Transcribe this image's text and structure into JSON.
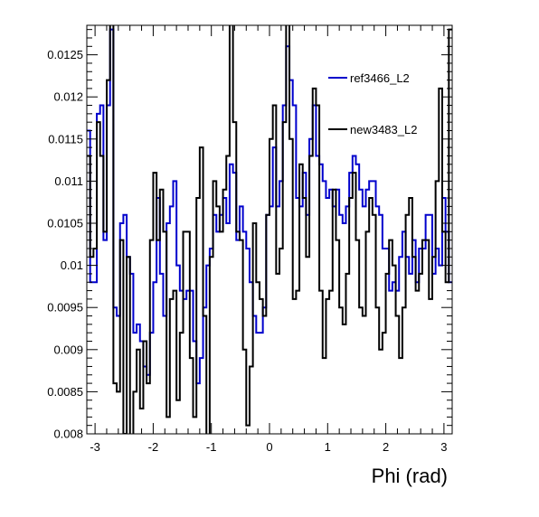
{
  "chart_data": {
    "type": "line",
    "xlabel": "Phi (rad)",
    "ylabel": "",
    "xlim": [
      -3.1416,
      3.1416
    ],
    "ylim": [
      0.008,
      0.01285
    ],
    "grid": false,
    "legend_placement": "top-right",
    "x_ticks": [
      -3,
      -2,
      -1,
      0,
      1,
      2,
      3
    ],
    "x_tick_labels": [
      "-3",
      "-2",
      "-1",
      "0",
      "1",
      "2",
      "3"
    ],
    "y_ticks": [
      0.008,
      0.0085,
      0.009,
      0.0095,
      0.01,
      0.0105,
      0.011,
      0.0115,
      0.012,
      0.0125
    ],
    "y_tick_labels": [
      "0.008",
      "0.0085",
      "0.009",
      "0.0095",
      "0.01",
      "0.0105",
      "0.011",
      "0.0115",
      "0.012",
      "0.0125"
    ],
    "series": [
      {
        "name": "ref3466_L2",
        "color": "#0000cc",
        "values": [
          0.0116,
          0.0098,
          0.0098,
          0.0118,
          0.0119,
          0.0103,
          0.0119,
          0.0128,
          0.0095,
          0.0094,
          0.0105,
          0.0106,
          0.0101,
          0.0099,
          0.0092,
          0.0093,
          0.0091,
          0.0088,
          0.0087,
          0.0092,
          0.0098,
          0.0108,
          0.0099,
          0.0094,
          0.0105,
          0.0107,
          0.011,
          0.01,
          0.0097,
          0.0096,
          0.0097,
          0.0097,
          0.0091,
          0.0086,
          0.0089,
          0.0095,
          0.01,
          0.0102,
          0.0106,
          0.0104,
          0.0106,
          0.0108,
          0.0105,
          0.0112,
          0.0111,
          0.0103,
          0.0107,
          0.0104,
          0.0102,
          0.0098,
          0.0094,
          0.0092,
          0.0092,
          0.0095,
          0.0106,
          0.0107,
          0.0114,
          0.0107,
          0.011,
          0.0119,
          0.0126,
          0.0122,
          0.0119,
          0.0108,
          0.0107,
          0.0111,
          0.0106,
          0.0115,
          0.0119,
          0.0113,
          0.0112,
          0.011,
          0.0108,
          0.0109,
          0.0107,
          0.0109,
          0.0106,
          0.0105,
          0.0107,
          0.0111,
          0.0113,
          0.0112,
          0.0109,
          0.0107,
          0.0109,
          0.011,
          0.011,
          0.0107,
          0.0106,
          0.0102,
          0.0102,
          0.0097,
          0.0098,
          0.0097,
          0.0101,
          0.0104,
          0.0101,
          0.0099,
          0.0103,
          0.0098,
          0.0102,
          0.0102,
          0.0106,
          0.0106,
          0.0099,
          0.0102,
          0.01,
          0.0108,
          0.0104,
          0.0098
        ]
      },
      {
        "name": "new3483_L2",
        "color": "#000000",
        "values": [
          0.0113,
          0.0101,
          0.0102,
          0.0117,
          0.0113,
          0.0104,
          0.0122,
          0.0131,
          0.0086,
          0.0085,
          0.0103,
          0.008,
          0.0101,
          0.0079,
          0.0085,
          0.009,
          0.0083,
          0.0091,
          0.0086,
          0.0103,
          0.0111,
          0.0103,
          0.0109,
          0.0104,
          0.0082,
          0.0096,
          0.0097,
          0.0084,
          0.0092,
          0.0104,
          0.0104,
          0.0089,
          0.0082,
          0.0108,
          0.0114,
          0.0094,
          0.0079,
          0.0101,
          0.011,
          0.0107,
          0.0104,
          0.0109,
          0.0113,
          0.013,
          0.0117,
          0.0104,
          0.0103,
          0.009,
          0.0081,
          0.0088,
          0.0105,
          0.0098,
          0.0096,
          0.0094,
          0.0106,
          0.0115,
          0.0119,
          0.0099,
          0.0102,
          0.0117,
          0.013,
          0.0115,
          0.0096,
          0.0097,
          0.0112,
          0.0108,
          0.0101,
          0.0113,
          0.0121,
          0.0119,
          0.0097,
          0.0089,
          0.0096,
          0.0097,
          0.0109,
          0.0103,
          0.0095,
          0.0093,
          0.0099,
          0.0108,
          0.0111,
          0.0103,
          0.0095,
          0.0094,
          0.0104,
          0.0108,
          0.0106,
          0.0095,
          0.009,
          0.0092,
          0.0099,
          0.0103,
          0.01,
          0.0094,
          0.0089,
          0.0095,
          0.0106,
          0.0108,
          0.0101,
          0.0097,
          0.0099,
          0.0103,
          0.0103,
          0.0096,
          0.0101,
          0.011,
          0.0121,
          0.0104,
          0.0098,
          0.0128
        ]
      }
    ]
  }
}
